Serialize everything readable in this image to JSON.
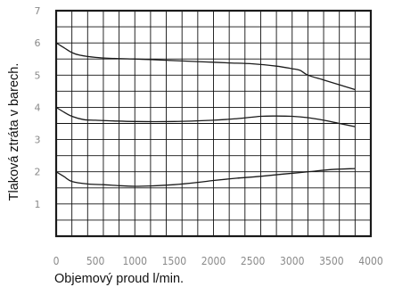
{
  "chart_data": {
    "type": "line",
    "title": "",
    "xlabel": "Objemový proud l/min.",
    "ylabel": "Tlaková ztráta v barech.",
    "xlim": [
      0,
      4000
    ],
    "ylim": [
      0,
      7
    ],
    "xticks": [
      "0",
      "500",
      "1000",
      "1500",
      "2000",
      "2500",
      "3000",
      "3500",
      "4000"
    ],
    "yticks": [
      "1",
      "2",
      "3",
      "4",
      "5",
      "6",
      "7"
    ],
    "grid": true,
    "series": [
      {
        "x": [
          0,
          100,
          200,
          300,
          500,
          700,
          1000,
          1200,
          1500,
          1800,
          2000,
          2200,
          2500,
          2800,
          3000,
          3100,
          3200,
          3400,
          3600,
          3800
        ],
        "y": [
          6.0,
          5.85,
          5.7,
          5.62,
          5.55,
          5.52,
          5.5,
          5.48,
          5.45,
          5.42,
          5.4,
          5.38,
          5.35,
          5.28,
          5.2,
          5.15,
          5.0,
          4.85,
          4.7,
          4.55
        ]
      },
      {
        "x": [
          0,
          100,
          200,
          350,
          500,
          700,
          1000,
          1500,
          2000,
          2300,
          2600,
          2800,
          3000,
          3200,
          3400,
          3600,
          3800
        ],
        "y": [
          4.0,
          3.85,
          3.72,
          3.62,
          3.6,
          3.58,
          3.56,
          3.56,
          3.6,
          3.65,
          3.72,
          3.73,
          3.72,
          3.68,
          3.6,
          3.5,
          3.4
        ]
      },
      {
        "x": [
          0,
          100,
          200,
          400,
          600,
          800,
          1000,
          1200,
          1500,
          1800,
          2000,
          2300,
          2600,
          2900,
          3200,
          3500,
          3800
        ],
        "y": [
          2.0,
          1.85,
          1.7,
          1.62,
          1.6,
          1.57,
          1.55,
          1.56,
          1.6,
          1.67,
          1.73,
          1.8,
          1.86,
          1.93,
          2.0,
          2.07,
          2.1
        ]
      }
    ]
  },
  "colors": {
    "frame": "#1a1a1a",
    "grid": "#111111",
    "curve": "#1a1a1a",
    "tick_label": "#8a8a8a",
    "axis_title": "#111111"
  }
}
